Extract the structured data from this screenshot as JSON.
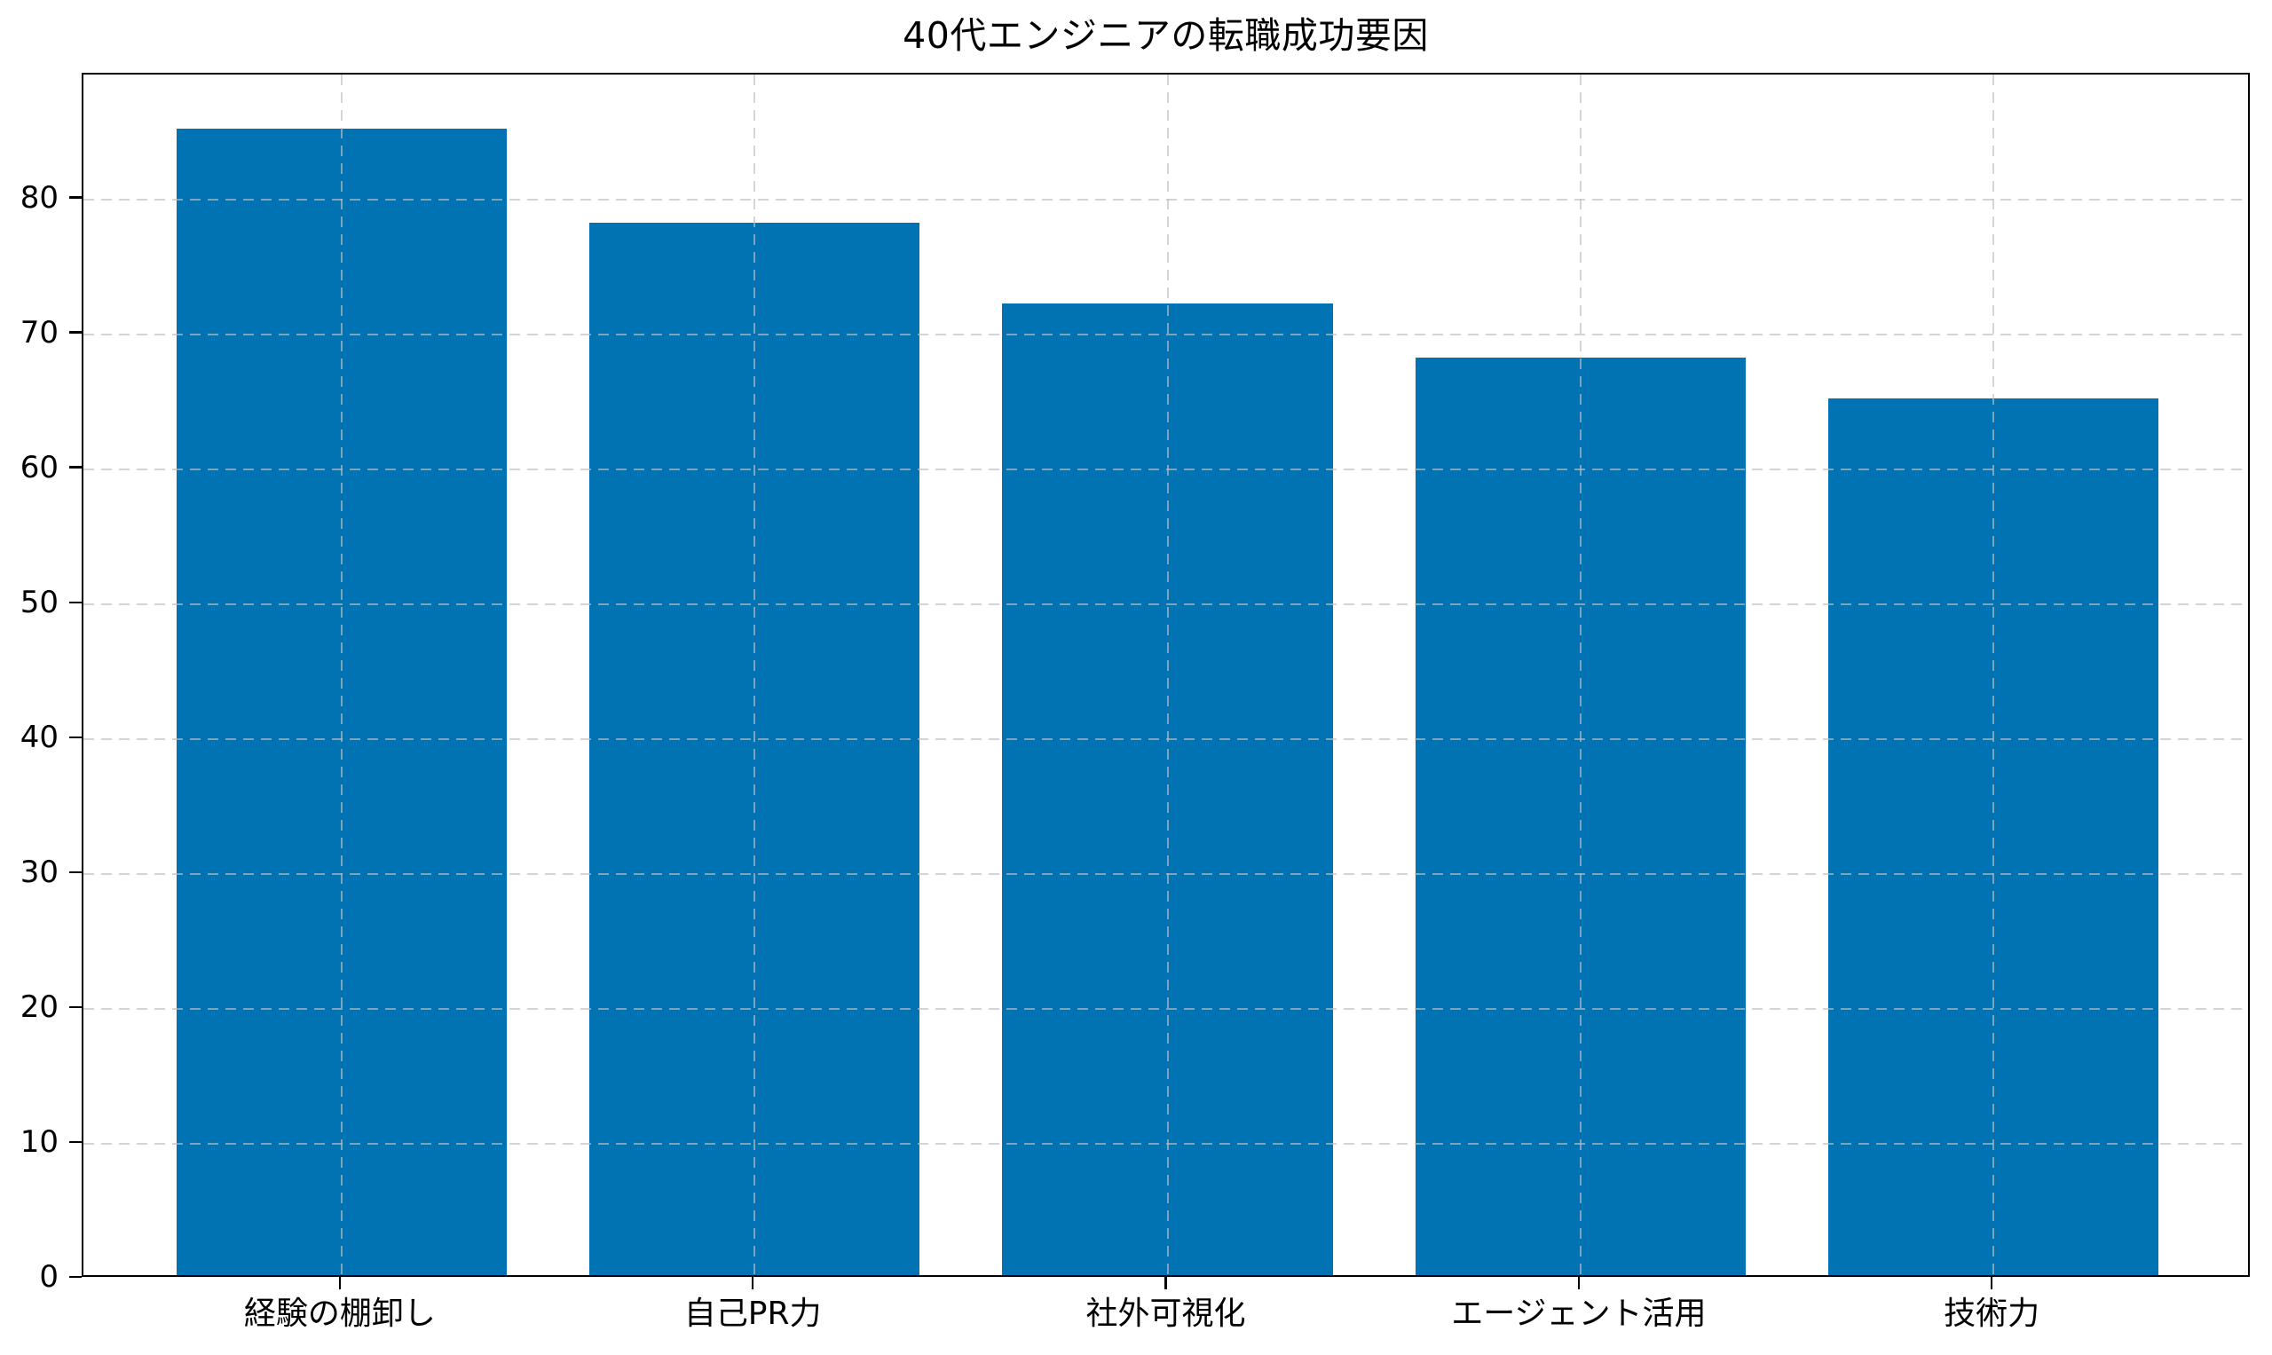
{
  "title": "40代エンジニアの転職成功要因",
  "chart_data": {
    "type": "bar",
    "title": "40代エンジニアの転職成功要因",
    "categories": [
      "経験の棚卸し",
      "自己PR力",
      "社外可視化",
      "エージェント活用",
      "技術力"
    ],
    "values": [
      85,
      78,
      72,
      68,
      65
    ],
    "xlabel": "",
    "ylabel": "",
    "yticks": [
      0,
      10,
      20,
      30,
      40,
      50,
      60,
      70,
      80
    ],
    "ylim": [
      0,
      89.25
    ],
    "bar_color": "#0173b2",
    "grid": true,
    "grid_linestyle": "dashed",
    "grid_above_bars": true,
    "legend": null,
    "frame": "full-box"
  }
}
